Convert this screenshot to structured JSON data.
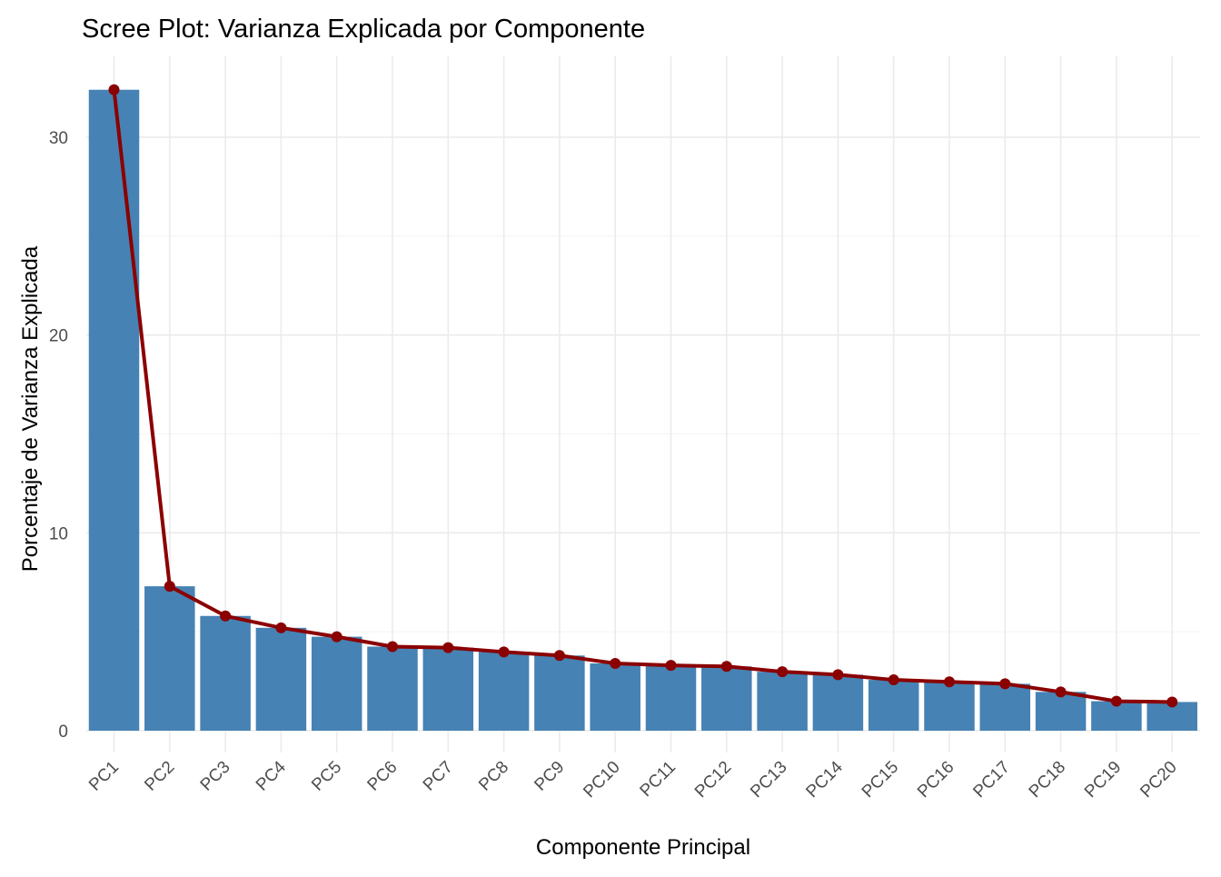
{
  "chart_data": {
    "type": "bar",
    "title": "Scree Plot: Varianza Explicada por Componente",
    "xlabel": "Componente Principal",
    "ylabel": "Porcentaje de Varianza Explicada",
    "categories": [
      "PC1",
      "PC2",
      "PC3",
      "PC4",
      "PC5",
      "PC6",
      "PC7",
      "PC8",
      "PC9",
      "PC10",
      "PC11",
      "PC12",
      "PC13",
      "PC14",
      "PC15",
      "PC16",
      "PC17",
      "PC18",
      "PC19",
      "PC20"
    ],
    "series": [
      {
        "type": "bar",
        "values": [
          32.4,
          7.3,
          5.8,
          5.2,
          4.75,
          4.25,
          4.2,
          3.98,
          3.8,
          3.4,
          3.3,
          3.25,
          2.98,
          2.83,
          2.57,
          2.47,
          2.37,
          1.96,
          1.49,
          1.45
        ]
      },
      {
        "type": "line",
        "values": [
          32.4,
          7.3,
          5.8,
          5.2,
          4.75,
          4.25,
          4.2,
          3.98,
          3.8,
          3.4,
          3.3,
          3.25,
          2.98,
          2.83,
          2.57,
          2.47,
          2.37,
          1.96,
          1.49,
          1.45
        ]
      }
    ],
    "ylim": [
      0,
      33.5
    ],
    "yticks": [
      0,
      10,
      20,
      30
    ],
    "grid": true,
    "legend": "none",
    "colors": {
      "bar": "#4682B4",
      "line": "#8B0000",
      "grid": "#ebebeb",
      "tick_text": "#4d4d4d"
    }
  }
}
